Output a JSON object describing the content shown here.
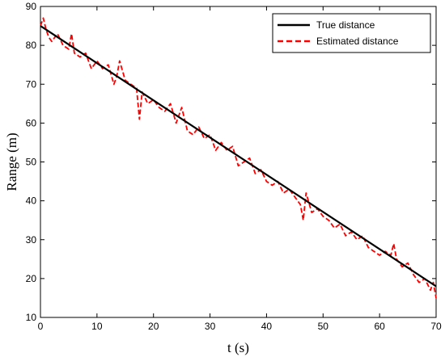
{
  "chart_data": {
    "type": "line",
    "title": "",
    "xlabel": "t (s)",
    "ylabel": "Range (m)",
    "xlim": [
      0,
      70
    ],
    "ylim": [
      10,
      90
    ],
    "xticks": [
      0,
      10,
      20,
      30,
      40,
      50,
      60,
      70
    ],
    "yticks": [
      10,
      20,
      30,
      40,
      50,
      60,
      70,
      80,
      90
    ],
    "grid": false,
    "legend_position": "top-right",
    "series": [
      {
        "name": "True distance",
        "color": "#000000",
        "style": "solid",
        "x": [
          0,
          70
        ],
        "y": [
          85,
          18
        ]
      },
      {
        "name": "Estimated distance",
        "color": "#ff0000",
        "style": "dashed",
        "x": [
          0,
          0.5,
          1,
          1.5,
          2,
          3,
          4,
          5,
          5.5,
          6,
          7,
          8,
          9,
          10,
          11,
          12,
          13,
          13.5,
          14,
          15,
          16,
          17,
          17.5,
          18,
          19,
          20,
          21,
          22,
          23,
          24,
          25,
          26,
          27,
          28,
          29,
          30,
          31,
          32,
          33,
          34,
          35,
          36,
          37,
          38,
          39,
          40,
          41,
          42,
          43,
          44,
          45,
          46,
          46.5,
          47,
          48,
          49,
          50,
          51,
          52,
          53,
          54,
          55,
          56,
          57,
          58,
          59,
          60,
          61,
          62,
          62.5,
          63,
          64,
          65,
          66,
          67,
          68,
          69,
          69.5,
          70
        ],
        "y": [
          85,
          87,
          84,
          82,
          81,
          83,
          80,
          79,
          83,
          78,
          77,
          78,
          74,
          76,
          74,
          75,
          70,
          72,
          76,
          71,
          70,
          69,
          61,
          68,
          65,
          66,
          64,
          63,
          65,
          60,
          64,
          58,
          57,
          59,
          56,
          57,
          53,
          55,
          53,
          54,
          49,
          50,
          51,
          47,
          48,
          45,
          44,
          45,
          42,
          43,
          41,
          39,
          35,
          42,
          37,
          38,
          36,
          35,
          33,
          34,
          31,
          32,
          30,
          31,
          28,
          27,
          26,
          27,
          26,
          29,
          25,
          23,
          24,
          21,
          19,
          20,
          17,
          19,
          15
        ]
      }
    ]
  }
}
